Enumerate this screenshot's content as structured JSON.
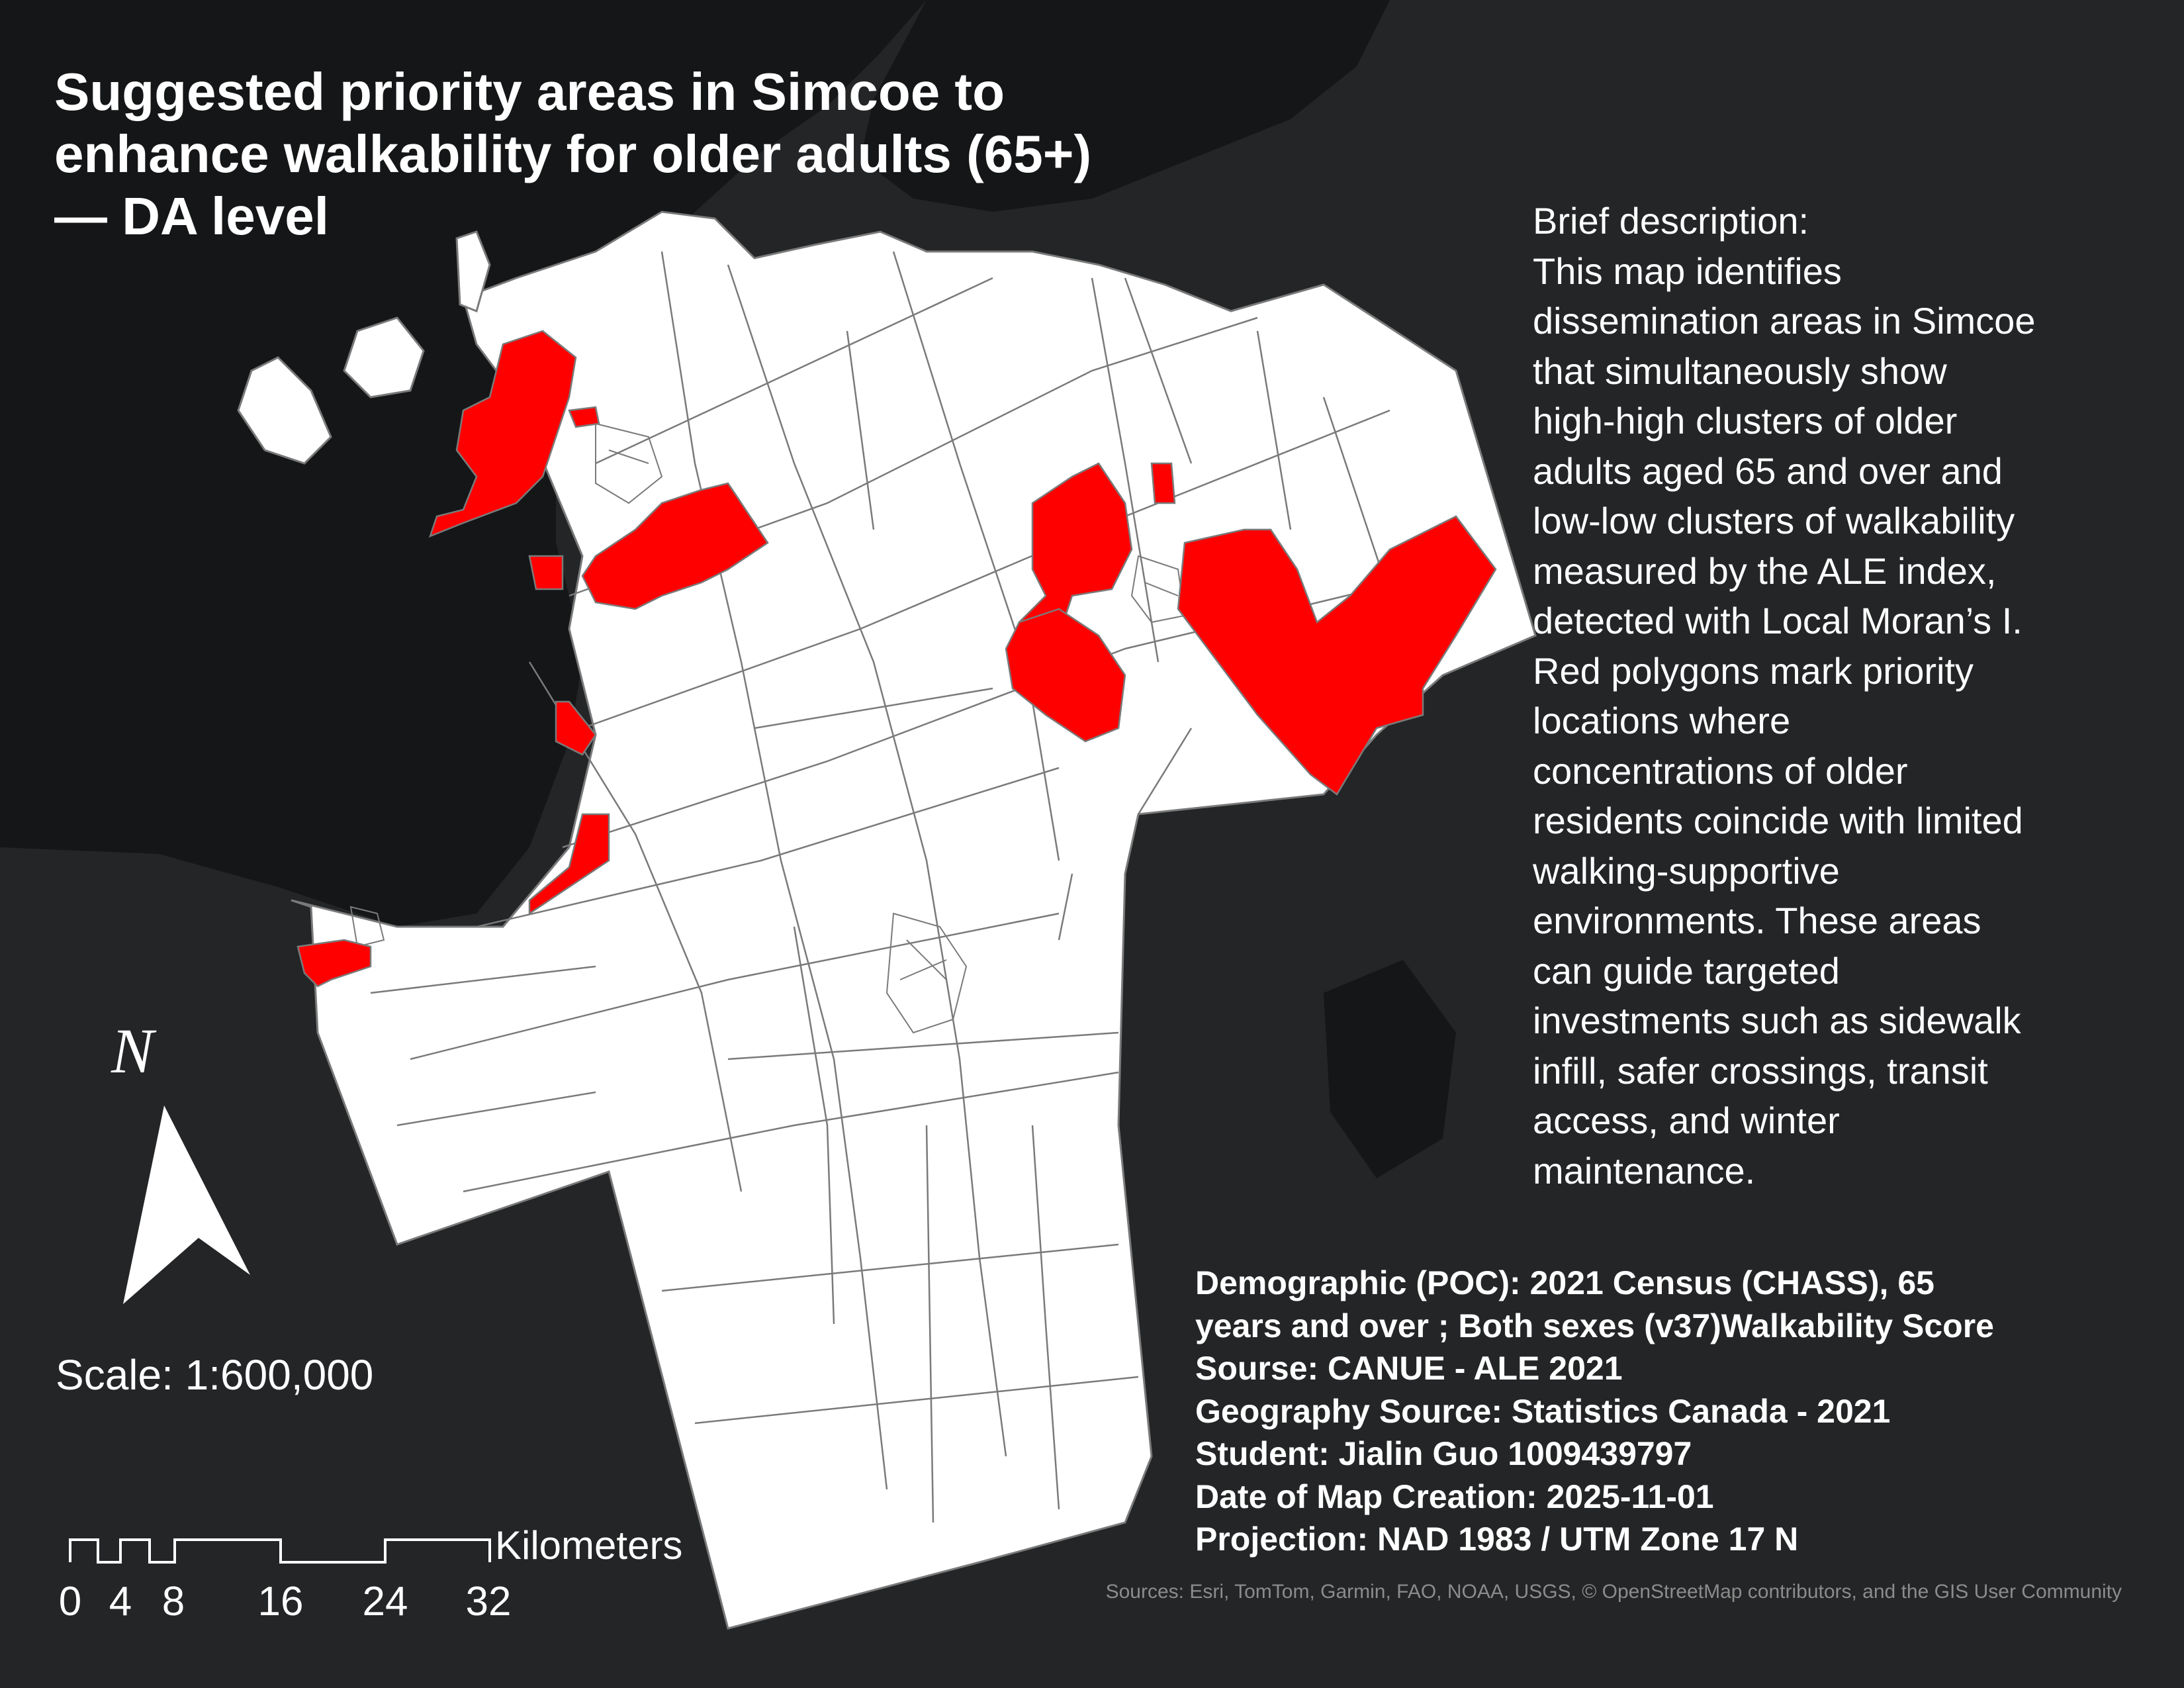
{
  "title_lines": [
    "Suggested priority areas in Simcoe to",
    "enhance walkability for older adults (65+)",
    "— DA level"
  ],
  "description_lines": [
    "Brief description:",
    "This map identifies",
    "dissemination areas in Simcoe",
    "that simultaneously show",
    "high-high clusters of older",
    "adults aged 65 and over and",
    "low-low clusters of walkability",
    "measured by the ALE index,",
    "detected with Local Moran’s I.",
    "Red polygons mark priority",
    "locations where",
    "concentrations of older",
    "residents coincide with limited",
    "walking-supportive",
    "environments. These areas",
    "can guide targeted",
    "investments such as sidewalk",
    "infill, safer crossings, transit",
    "access, and winter",
    "maintenance."
  ],
  "metadata_lines": [
    "Demographic (POC): 2021 Census (CHASS), 65",
    "years and over ; Both sexes (v37)Walkability Score",
    "Sourse: CANUE - ALE 2021",
    "Geography Source: Statistics Canada - 2021",
    "Student: Jialin Guo 1009439797",
    "Date of Map Creation: 2025-11-01",
    "Projection: NAD 1983 / UTM Zone 17 N"
  ],
  "north_arrow": {
    "letter": "N",
    "icon": "north-arrow-icon"
  },
  "scale": {
    "label": "Scale: 1:600,000",
    "unit": "Kilometers",
    "ticks": [
      "0",
      "4",
      "8",
      "16",
      "24",
      "32"
    ]
  },
  "credits": "Sources: Esri, TomTom, Garmin, FAO, NOAA, USGS, © OpenStreetMap contributors, and the GIS User Community",
  "colors": {
    "background": "#232526",
    "water": "#141617",
    "land_fill": "#ffffff",
    "boundary": "#7a7a7a",
    "priority": "#ff0000",
    "text": "#ffffff",
    "credits": "#8c8c8c"
  }
}
